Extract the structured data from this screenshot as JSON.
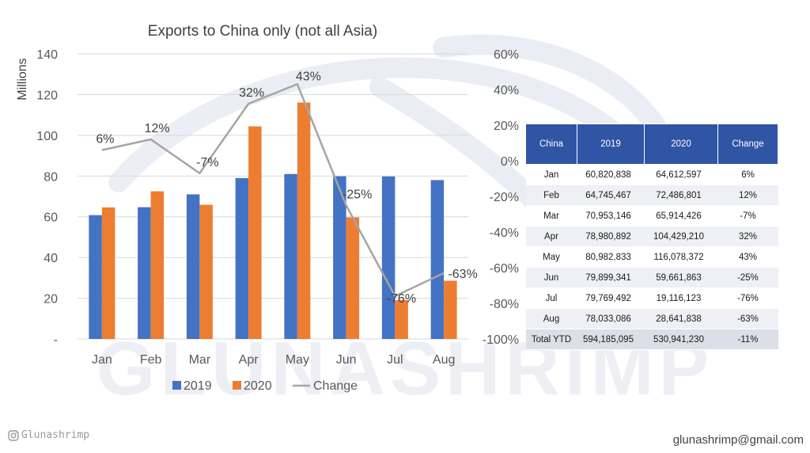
{
  "chart_data": {
    "type": "bar",
    "title": "Exports to China only (not all Asia)",
    "ylabel": "Millions",
    "xlabel": "",
    "categories": [
      "Jan",
      "Feb",
      "Mar",
      "Apr",
      "May",
      "Jun",
      "Jul",
      "Aug"
    ],
    "ylim": [
      0,
      140
    ],
    "y_ticks": [
      "-",
      "20",
      "40",
      "60",
      "80",
      "100",
      "120",
      "140"
    ],
    "y2lim": [
      -100,
      60
    ],
    "y2_ticks": [
      "-100%",
      "-80%",
      "-60%",
      "-40%",
      "-20%",
      "0%",
      "20%",
      "40%",
      "60%"
    ],
    "grid": true,
    "legend_position": "bottom",
    "series": [
      {
        "name": "2019",
        "type": "bar",
        "axis": "left",
        "color": "#4472c4",
        "values": [
          60.8,
          64.7,
          71.0,
          79.0,
          81.0,
          79.9,
          79.8,
          78.0
        ]
      },
      {
        "name": "2020",
        "type": "bar",
        "axis": "left",
        "color": "#ed7d31",
        "values": [
          64.6,
          72.5,
          65.9,
          104.4,
          116.1,
          59.7,
          19.1,
          28.6
        ]
      },
      {
        "name": "Change",
        "type": "line",
        "axis": "right",
        "color": "#a5a5a5",
        "values": [
          6,
          12,
          -7,
          32,
          43,
          -25,
          -76,
          -63
        ],
        "data_labels": [
          "6%",
          "12%",
          "-7%",
          "32%",
          "43%",
          "-25%",
          "-76%",
          "-63%"
        ]
      }
    ]
  },
  "table": {
    "headers": [
      "China",
      "2019",
      "2020",
      "Change"
    ],
    "rows": [
      [
        "Jan",
        "60,820,838",
        "64,612,597",
        "6%"
      ],
      [
        "Feb",
        "64,745,467",
        "72,486,801",
        "12%"
      ],
      [
        "Mar",
        "70,953,146",
        "65,914,426",
        "-7%"
      ],
      [
        "Apr",
        "78,980,892",
        "104,429,210",
        "32%"
      ],
      [
        "May",
        "80,982,833",
        "116,078,372",
        "43%"
      ],
      [
        "Jun",
        "79,899,341",
        "59,661,863",
        "-25%"
      ],
      [
        "Jul",
        "79,769,492",
        "19,116,123",
        "-76%"
      ],
      [
        "Aug",
        "78,033,086",
        "28,641,838",
        "-63%"
      ],
      [
        "Total YTD",
        "594,185,095",
        "530,941,230",
        "-11%"
      ]
    ]
  },
  "watermark": {
    "text": "GLUNASHRIMP"
  },
  "footer": {
    "social": "Glunashrimp",
    "social_icon": "instagram-icon",
    "email": "glunashrimp@gmail.com"
  }
}
